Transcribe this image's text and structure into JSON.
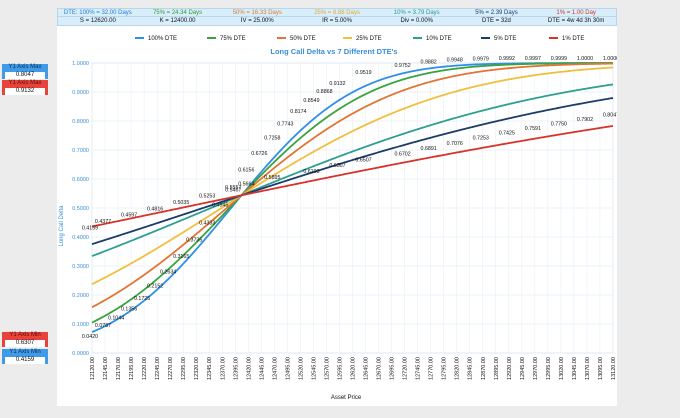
{
  "header": {
    "dte_labels": [
      {
        "text": "DTE: 100% = 32.00 Days",
        "color": "#2b7bd6"
      },
      {
        "text": "75% = 24.34 Days",
        "color": "#2f9a3a"
      },
      {
        "text": "50% = 16.33 Days",
        "color": "#e07a2e"
      },
      {
        "text": "25% = 8.88 Days",
        "color": "#e0a92e"
      },
      {
        "text": "10% = 3.79 Days",
        "color": "#2a9a8a"
      },
      {
        "text": "5% = 2.39 Days",
        "color": "#1e3a6e"
      },
      {
        "text": "1% = 1.00 Day",
        "color": "#d9342b"
      }
    ],
    "params": [
      "S = 12620.00",
      "K = 12400.00",
      "IV = 25.00%",
      "IR = 5.00%",
      "Div = 0.00%",
      "DTE = 32d",
      "DTE = 4w 4d 3h 30m"
    ]
  },
  "side_panel": {
    "y1_max_blue": {
      "label": "Y1 Axis Max",
      "value": "0.8047"
    },
    "y1_max_red": {
      "label": "Y1 Axis Max",
      "value": "0.9132"
    },
    "y1_min_red": {
      "label": "Y1 Axis Min",
      "value": "0.6307"
    },
    "y1_min_blue": {
      "label": "Y1 Axis Min",
      "value": "0.4159"
    }
  },
  "chart_data": {
    "type": "line",
    "title": "Long Call Delta vs 7 Different DTE's",
    "xlabel": "Asset Price",
    "ylabel": "Long Call Delta",
    "ylim": [
      0,
      1
    ],
    "yticks": [
      "0.0000",
      "0.1000",
      "0.2000",
      "0.3000",
      "0.4000",
      "0.5000",
      "0.6000",
      "0.7000",
      "0.8000",
      "0.9000",
      "1.0000"
    ],
    "x": [
      12120,
      12145,
      12170,
      12195,
      12220,
      12245,
      12270,
      12295,
      12320,
      12345,
      12370,
      12395,
      12420,
      12445,
      12470,
      12495,
      12520,
      12545,
      12570,
      12595,
      12620,
      12645,
      12670,
      12695,
      12720,
      12745,
      12770,
      12795,
      12820,
      12845,
      12870,
      12895,
      12920,
      12945,
      12970,
      12995,
      13020,
      13045,
      13070,
      13095,
      13120
    ],
    "xtick_labels": [
      "12120.00",
      "12145.00",
      "12170.00",
      "12195.00",
      "12220.00",
      "12245.00",
      "12270.00",
      "12295.00",
      "12320.00",
      "12345.00",
      "12370.00",
      "12395.00",
      "12420.00",
      "12445.00",
      "12470.00",
      "12495.00",
      "12520.00",
      "12545.00",
      "12570.00",
      "12595.00",
      "12620.00",
      "12645.00",
      "12670.00",
      "12695.00",
      "12720.00",
      "12745.00",
      "12770.00",
      "12795.00",
      "12820.00",
      "12845.00",
      "12870.00",
      "12895.00",
      "12920.00",
      "12945.00",
      "12970.00",
      "12995.00",
      "13020.00",
      "13045.00",
      "13070.00",
      "13095.00",
      "13120.00"
    ],
    "legend_position": "top",
    "grid": true,
    "series": [
      {
        "name": "100% DTE",
        "color": "#2f8fe6",
        "spread": 0.1005
      },
      {
        "name": "75% DTE",
        "color": "#3aa33d",
        "spread": 0.1158
      },
      {
        "name": "50% DTE",
        "color": "#e27434",
        "spread": 0.1418
      },
      {
        "name": "25% DTE",
        "color": "#f0bf3c",
        "spread": 0.1914
      },
      {
        "name": "10% DTE",
        "color": "#2f9f8f",
        "spread": 0.2932
      },
      {
        "name": "5% DTE",
        "color": "#1d3b6b",
        "spread": 0.3693
      },
      {
        "name": "1% DTE",
        "color": "#d8332a",
        "spread": 0.5834
      }
    ],
    "data_labels": [
      {
        "x": 12120,
        "y": 0.4159,
        "text": "0.4159"
      },
      {
        "x": 12145,
        "y": 0.4377,
        "text": "0.4377"
      },
      {
        "x": 12195,
        "y": 0.4597,
        "text": "0.4597"
      },
      {
        "x": 12245,
        "y": 0.4816,
        "text": "0.4816"
      },
      {
        "x": 12295,
        "y": 0.5035,
        "text": "0.5035"
      },
      {
        "x": 12345,
        "y": 0.5253,
        "text": "0.5253"
      },
      {
        "x": 12395,
        "y": 0.5467,
        "text": "0.5467"
      },
      {
        "x": 12470,
        "y": 0.5895,
        "text": "0.5895"
      },
      {
        "x": 12545,
        "y": 0.6103,
        "text": "0.6103"
      },
      {
        "x": 12595,
        "y": 0.6307,
        "text": "0.6307"
      },
      {
        "x": 12645,
        "y": 0.6507,
        "text": "0.6507"
      },
      {
        "x": 12720,
        "y": 0.6702,
        "text": "0.6702"
      },
      {
        "x": 12770,
        "y": 0.6891,
        "text": "0.6891"
      },
      {
        "x": 12820,
        "y": 0.7076,
        "text": "0.7076"
      },
      {
        "x": 12870,
        "y": 0.7253,
        "text": "0.7253"
      },
      {
        "x": 12920,
        "y": 0.7425,
        "text": "0.7425"
      },
      {
        "x": 12970,
        "y": 0.7591,
        "text": "0.7591"
      },
      {
        "x": 13020,
        "y": 0.775,
        "text": "0.7750"
      },
      {
        "x": 13070,
        "y": 0.7902,
        "text": "0.7902"
      },
      {
        "x": 13120,
        "y": 0.8047,
        "text": "0.8047"
      },
      {
        "x": 12120,
        "y": 0.042,
        "text": "0.0420"
      },
      {
        "x": 12145,
        "y": 0.0787,
        "text": "0.0787"
      },
      {
        "x": 12170,
        "y": 0.1044,
        "text": "0.1044"
      },
      {
        "x": 12195,
        "y": 0.1356,
        "text": "0.1356"
      },
      {
        "x": 12220,
        "y": 0.1725,
        "text": "0.1725"
      },
      {
        "x": 12245,
        "y": 0.2152,
        "text": "0.2152"
      },
      {
        "x": 12270,
        "y": 0.2634,
        "text": "0.2634"
      },
      {
        "x": 12295,
        "y": 0.3165,
        "text": "0.3165"
      },
      {
        "x": 12320,
        "y": 0.3735,
        "text": "0.3735"
      },
      {
        "x": 12345,
        "y": 0.4333,
        "text": "0.4333"
      },
      {
        "x": 12370,
        "y": 0.4945,
        "text": "0.4945"
      },
      {
        "x": 12395,
        "y": 0.5557,
        "text": "0.5557"
      },
      {
        "x": 12420,
        "y": 0.6156,
        "text": "0.6156"
      },
      {
        "x": 12445,
        "y": 0.6726,
        "text": "0.6726"
      },
      {
        "x": 12470,
        "y": 0.7258,
        "text": "0.7258"
      },
      {
        "x": 12495,
        "y": 0.7743,
        "text": "0.7743"
      },
      {
        "x": 12520,
        "y": 0.8174,
        "text": "0.8174"
      },
      {
        "x": 12545,
        "y": 0.8549,
        "text": "0.8549"
      },
      {
        "x": 12570,
        "y": 0.8868,
        "text": "0.8868"
      },
      {
        "x": 12595,
        "y": 0.9132,
        "text": "0.9132"
      },
      {
        "x": 12645,
        "y": 0.9519,
        "text": "0.9519"
      },
      {
        "x": 12720,
        "y": 0.9752,
        "text": "0.9752"
      },
      {
        "x": 12770,
        "y": 0.9882,
        "text": "0.9882"
      },
      {
        "x": 12820,
        "y": 0.9948,
        "text": "0.9948"
      },
      {
        "x": 12870,
        "y": 0.9979,
        "text": "0.9979"
      },
      {
        "x": 12920,
        "y": 0.9992,
        "text": "0.9992"
      },
      {
        "x": 12970,
        "y": 0.9997,
        "text": "0.9997"
      },
      {
        "x": 13020,
        "y": 0.9999,
        "text": "0.9999"
      },
      {
        "x": 13070,
        "y": 1.0,
        "text": "1.0000"
      },
      {
        "x": 13120,
        "y": 1.0,
        "text": "1.0000"
      },
      {
        "x": 12420,
        "y": 0.5664,
        "text": "0.5664"
      }
    ]
  }
}
